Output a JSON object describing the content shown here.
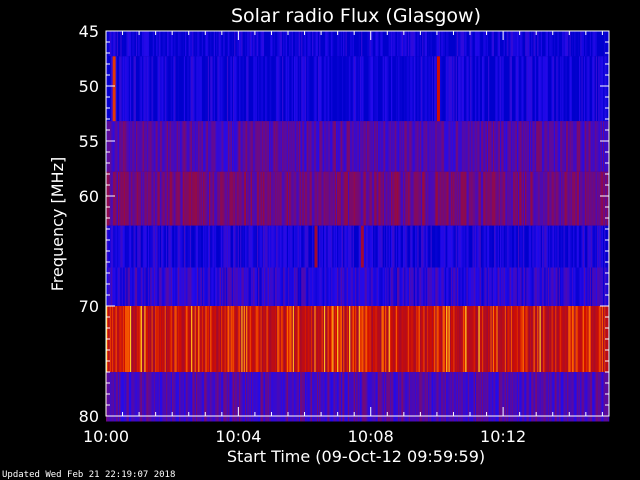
{
  "chart_data": {
    "type": "heatmap",
    "title": "Solar radio Flux (Glasgow)",
    "xlabel": "Start Time (09-Oct-12 09:59:59)",
    "ylabel": "Frequency [MHz]",
    "x_unit": "minutes after 10:00",
    "xlim": [
      0,
      15.2
    ],
    "ylim": [
      80,
      45
    ],
    "x_ticks": [
      {
        "label": "10:00",
        "value": 0
      },
      {
        "label": "10:04",
        "value": 4
      },
      {
        "label": "10:08",
        "value": 8
      },
      {
        "label": "10:12",
        "value": 12
      }
    ],
    "y_ticks": [
      {
        "label": "45",
        "value": 45
      },
      {
        "label": "50",
        "value": 50
      },
      {
        "label": "55",
        "value": 55
      },
      {
        "label": "60",
        "value": 60
      },
      {
        "label": "70",
        "value": 70
      },
      {
        "label": "80",
        "value": 80
      }
    ],
    "bands": [
      {
        "from": 45,
        "to": 47.3,
        "intensity": 0.05
      },
      {
        "from": 47.3,
        "to": 53.2,
        "intensity": 0.06
      },
      {
        "from": 53.2,
        "to": 57.8,
        "intensity": 0.32
      },
      {
        "from": 57.8,
        "to": 62.7,
        "intensity": 0.42
      },
      {
        "from": 62.7,
        "to": 66.5,
        "intensity": 0.1
      },
      {
        "from": 66.5,
        "to": 70.0,
        "intensity": 0.18
      },
      {
        "from": 70.0,
        "to": 76.0,
        "intensity": 0.75
      },
      {
        "from": 76.0,
        "to": 80.5,
        "intensity": 0.3
      }
    ],
    "bursts": [
      {
        "t": 0.2,
        "from": 47.3,
        "to": 53.2,
        "intensity": 0.85
      },
      {
        "t": 10.0,
        "from": 47.3,
        "to": 53.2,
        "intensity": 0.8
      },
      {
        "t": 6.3,
        "from": 62.7,
        "to": 66.5,
        "intensity": 0.6
      },
      {
        "t": 7.7,
        "from": 62.7,
        "to": 66.5,
        "intensity": 0.6
      }
    ]
  },
  "footer": "Updated Wed Feb 21 22:19:07 2018"
}
